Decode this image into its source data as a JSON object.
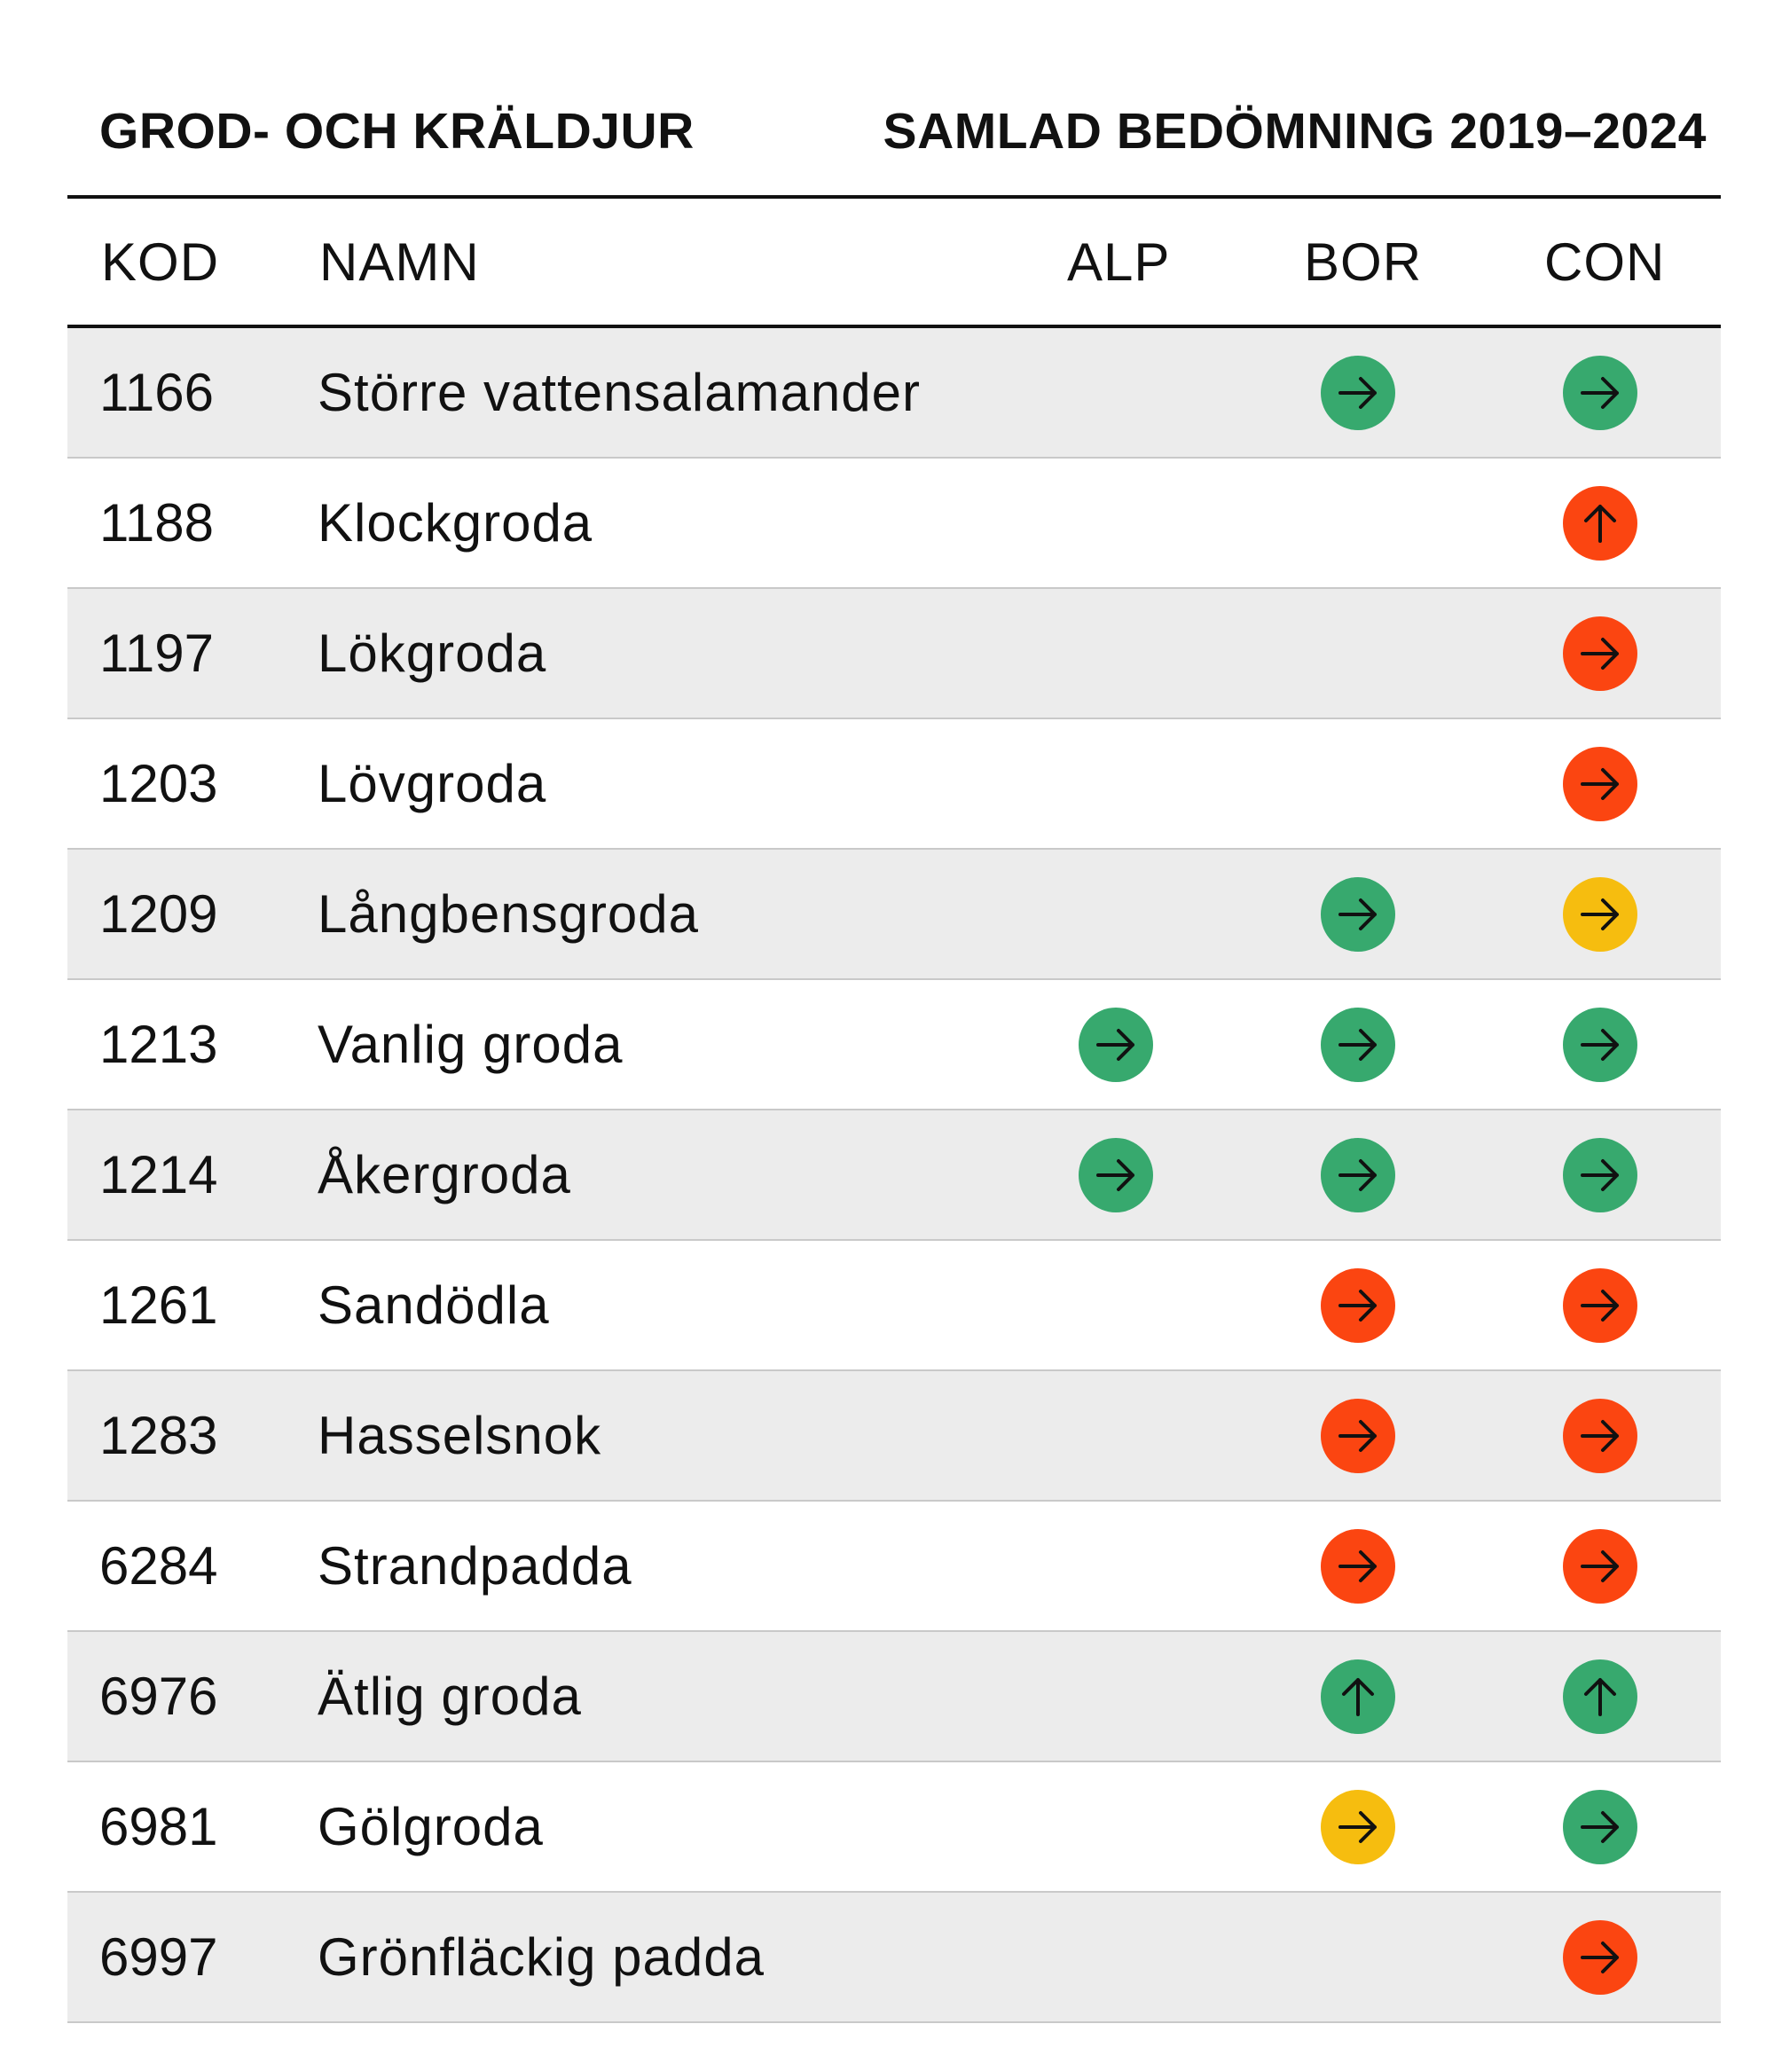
{
  "title": {
    "left": "GROD- OCH KRÄLDJUR",
    "right": "SAMLAD BEDÖMNING 2019–2024"
  },
  "columns": {
    "code": "KOD",
    "name": "NAMN",
    "alp": "ALP",
    "bor": "BOR",
    "con": "CON"
  },
  "colors": {
    "green": "#37a96e",
    "red": "#fb4511",
    "yellow": "#f6bd0f",
    "shade": "#ececec"
  },
  "rows": [
    {
      "code": "1166",
      "name": "Större vattensalamander",
      "alp": null,
      "bor": {
        "color": "green",
        "icon": "arrow-right-icon"
      },
      "con": {
        "color": "green",
        "icon": "arrow-right-icon"
      }
    },
    {
      "code": "1188",
      "name": "Klockgroda",
      "alp": null,
      "bor": null,
      "con": {
        "color": "red",
        "icon": "arrow-up-icon"
      }
    },
    {
      "code": "1197",
      "name": "Lökgroda",
      "alp": null,
      "bor": null,
      "con": {
        "color": "red",
        "icon": "arrow-right-icon"
      }
    },
    {
      "code": "1203",
      "name": "Lövgroda",
      "alp": null,
      "bor": null,
      "con": {
        "color": "red",
        "icon": "arrow-right-icon"
      }
    },
    {
      "code": "1209",
      "name": "Långbensgroda",
      "alp": null,
      "bor": {
        "color": "green",
        "icon": "arrow-right-icon"
      },
      "con": {
        "color": "yellow",
        "icon": "arrow-right-icon"
      }
    },
    {
      "code": "1213",
      "name": "Vanlig groda",
      "alp": {
        "color": "green",
        "icon": "arrow-right-icon"
      },
      "bor": {
        "color": "green",
        "icon": "arrow-right-icon"
      },
      "con": {
        "color": "green",
        "icon": "arrow-right-icon"
      }
    },
    {
      "code": "1214",
      "name": "Åkergroda",
      "alp": {
        "color": "green",
        "icon": "arrow-right-icon"
      },
      "bor": {
        "color": "green",
        "icon": "arrow-right-icon"
      },
      "con": {
        "color": "green",
        "icon": "arrow-right-icon"
      }
    },
    {
      "code": "1261",
      "name": "Sandödla",
      "alp": null,
      "bor": {
        "color": "red",
        "icon": "arrow-right-icon"
      },
      "con": {
        "color": "red",
        "icon": "arrow-right-icon"
      }
    },
    {
      "code": "1283",
      "name": "Hasselsnok",
      "alp": null,
      "bor": {
        "color": "red",
        "icon": "arrow-right-icon"
      },
      "con": {
        "color": "red",
        "icon": "arrow-right-icon"
      }
    },
    {
      "code": "6284",
      "name": "Strandpadda",
      "alp": null,
      "bor": {
        "color": "red",
        "icon": "arrow-right-icon"
      },
      "con": {
        "color": "red",
        "icon": "arrow-right-icon"
      }
    },
    {
      "code": "6976",
      "name": "Ätlig groda",
      "alp": null,
      "bor": {
        "color": "green",
        "icon": "arrow-up-icon"
      },
      "con": {
        "color": "green",
        "icon": "arrow-up-icon"
      }
    },
    {
      "code": "6981",
      "name": "Gölgroda",
      "alp": null,
      "bor": {
        "color": "yellow",
        "icon": "arrow-right-icon"
      },
      "con": {
        "color": "green",
        "icon": "arrow-right-icon"
      }
    },
    {
      "code": "6997",
      "name": "Grönfläckig padda",
      "alp": null,
      "bor": null,
      "con": {
        "color": "red",
        "icon": "arrow-right-icon"
      }
    }
  ]
}
